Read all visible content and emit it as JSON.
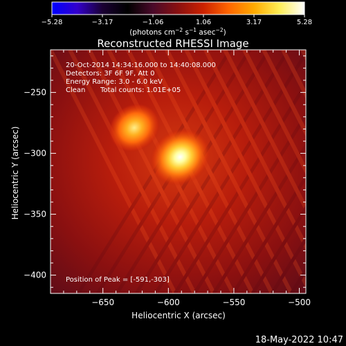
{
  "colorbar": {
    "ticks": [
      "−5.28",
      "−3.17",
      "−1.06",
      "1.06",
      "3.17",
      "5.28"
    ],
    "unit": {
      "prefix": "(photons cm",
      "exp1": "−2",
      "mid": " s",
      "exp2": "−1",
      "mid2": " asec",
      "exp3": "−2",
      "suffix": ")"
    },
    "colors": [
      "#0000ff",
      "#3300cc",
      "#1a0033",
      "#000000",
      "#4a0a2a",
      "#8a1010",
      "#cc2200",
      "#ff6600",
      "#ffaa00",
      "#ffee55",
      "#ffffff"
    ]
  },
  "chart_data": {
    "type": "heatmap",
    "title": "Reconstructed RHESSI Image",
    "xlabel": "Heliocentric X (arcsec)",
    "ylabel": "Heliocentric Y (arcsec)",
    "xlim": [
      -690,
      -495
    ],
    "ylim": [
      -415,
      -215
    ],
    "xticks": [
      -650,
      -600,
      -550,
      -500
    ],
    "yticks": [
      -250,
      -300,
      -350,
      -400
    ],
    "xtick_labels": [
      "−650",
      "−600",
      "−550",
      "−500"
    ],
    "ytick_labels": [
      "−250",
      "−300",
      "−350",
      "−400"
    ],
    "sources": [
      {
        "x": -591,
        "y": -303,
        "relative_intensity": 1.0
      },
      {
        "x": -626,
        "y": -279,
        "relative_intensity": 0.7
      }
    ],
    "annotations": {
      "time": "20-Oct-2014 14:34:16.000 to 14:40:08.000",
      "detectors": "Detectors: 3F 6F 9F, Att 0",
      "energy": "Energy Range: 3.0 - 6.0 keV",
      "method": "Clean",
      "counts": "Total counts: 1.01E+05",
      "peak": "Position of Peak = [-591,-303]"
    }
  },
  "footer": {
    "date": "18-May-2022 10:47"
  }
}
